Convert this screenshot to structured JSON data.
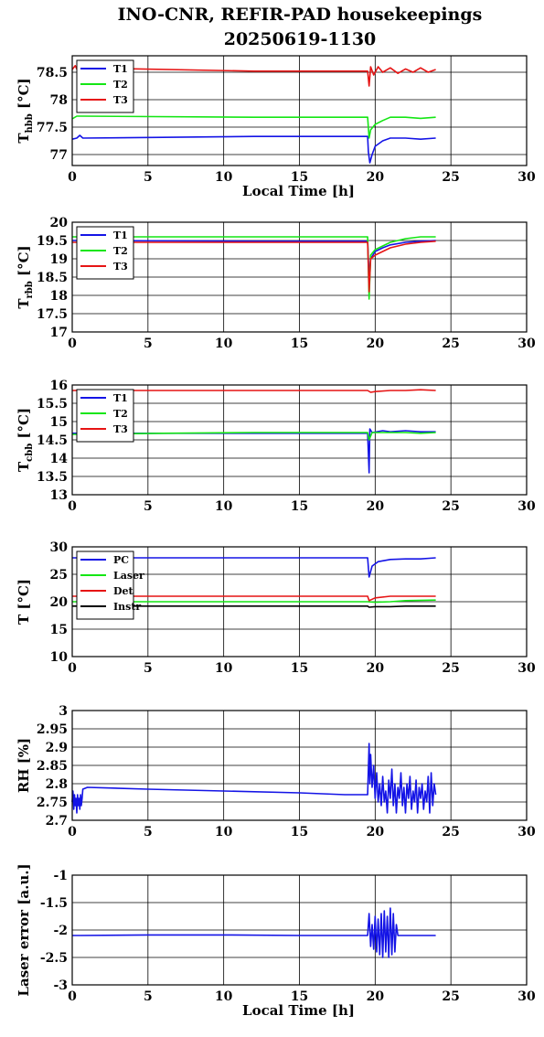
{
  "title_line1": "INO-CNR, REFIR-PAD housekeepings",
  "title_line2": "20250619-1130",
  "colors": {
    "blue": "#1414e6",
    "green": "#14e614",
    "red": "#e61414",
    "black": "#000000"
  },
  "chart_data": [
    {
      "type": "line",
      "ylabel_main": "T",
      "ylabel_sub": "hbb",
      "ylabel_unit": " [°C]",
      "xlabel": "Local Time [h]",
      "xlim": [
        0,
        30
      ],
      "xticks": [
        "0",
        "5",
        "10",
        "15",
        "20",
        "25",
        "30"
      ],
      "ylim": [
        76.8,
        78.8
      ],
      "yticks": [
        {
          "v": 77,
          "t": "77"
        },
        {
          "v": 77.5,
          "t": "77.5"
        },
        {
          "v": 78,
          "t": "78"
        },
        {
          "v": 78.5,
          "t": "78.5"
        }
      ],
      "grid": true,
      "legend": "top-left",
      "series": [
        {
          "name": "T1",
          "color": "blue",
          "x": [
            0,
            0.3,
            0.5,
            0.7,
            12,
            19.5,
            19.55,
            19.65,
            19.8,
            20,
            20.5,
            21,
            22,
            23,
            24
          ],
          "y": [
            77.28,
            77.3,
            77.35,
            77.3,
            77.33,
            77.33,
            77.05,
            76.85,
            77.0,
            77.15,
            77.25,
            77.3,
            77.3,
            77.28,
            77.3
          ]
        },
        {
          "name": "T2",
          "color": "green",
          "x": [
            0,
            0.3,
            0.5,
            12,
            19.5,
            19.6,
            19.7,
            20,
            20.5,
            21,
            22,
            23,
            24
          ],
          "y": [
            77.65,
            77.7,
            77.7,
            77.68,
            77.68,
            77.3,
            77.45,
            77.55,
            77.62,
            77.68,
            77.68,
            77.66,
            77.68
          ]
        },
        {
          "name": "T3",
          "color": "red",
          "x": [
            0,
            0.2,
            0.4,
            0.6,
            12,
            19.5,
            19.6,
            19.7,
            19.9,
            20.2,
            20.5,
            21,
            21.5,
            22,
            22.5,
            23,
            23.5,
            24
          ],
          "y": [
            78.55,
            78.62,
            78.5,
            78.58,
            78.52,
            78.52,
            78.25,
            78.6,
            78.45,
            78.6,
            78.5,
            78.58,
            78.48,
            78.56,
            78.5,
            78.58,
            78.5,
            78.55
          ]
        }
      ]
    },
    {
      "type": "line",
      "ylabel_main": "T",
      "ylabel_sub": "rbb",
      "ylabel_unit": " [°C]",
      "xlabel": "",
      "xlim": [
        0,
        30
      ],
      "xticks": [
        "0",
        "5",
        "10",
        "15",
        "20",
        "25",
        "30"
      ],
      "ylim": [
        17,
        20
      ],
      "yticks": [
        {
          "v": 17,
          "t": "17"
        },
        {
          "v": 17.5,
          "t": "17.5"
        },
        {
          "v": 18,
          "t": "18"
        },
        {
          "v": 18.5,
          "t": "18.5"
        },
        {
          "v": 19,
          "t": "19"
        },
        {
          "v": 19.5,
          "t": "19.5"
        },
        {
          "v": 20,
          "t": "20"
        }
      ],
      "grid": true,
      "legend": "top-left",
      "series": [
        {
          "name": "T1",
          "color": "blue",
          "x": [
            0,
            12,
            19.5,
            19.6,
            19.7,
            20,
            20.5,
            21,
            22,
            23,
            24
          ],
          "y": [
            19.5,
            19.48,
            19.48,
            18.5,
            19.0,
            19.2,
            19.3,
            19.38,
            19.45,
            19.48,
            19.5
          ]
        },
        {
          "name": "T2",
          "color": "green",
          "x": [
            0,
            12,
            19.5,
            19.6,
            19.7,
            20,
            20.5,
            21,
            22,
            23,
            24
          ],
          "y": [
            19.6,
            19.6,
            19.6,
            17.9,
            19.1,
            19.25,
            19.35,
            19.45,
            19.55,
            19.6,
            19.6
          ]
        },
        {
          "name": "T3",
          "color": "red",
          "x": [
            0,
            12,
            19.5,
            19.6,
            19.7,
            20,
            20.5,
            21,
            22,
            23,
            24
          ],
          "y": [
            19.45,
            19.45,
            19.45,
            18.1,
            19.0,
            19.1,
            19.2,
            19.3,
            19.4,
            19.45,
            19.48
          ]
        }
      ]
    },
    {
      "type": "line",
      "ylabel_main": "T",
      "ylabel_sub": "cbb",
      "ylabel_unit": " [°C]",
      "xlabel": "",
      "xlim": [
        0,
        30
      ],
      "xticks": [
        "0",
        "5",
        "10",
        "15",
        "20",
        "25",
        "30"
      ],
      "ylim": [
        13,
        16
      ],
      "yticks": [
        {
          "v": 13,
          "t": "13"
        },
        {
          "v": 13.5,
          "t": "13.5"
        },
        {
          "v": 14,
          "t": "14"
        },
        {
          "v": 14.5,
          "t": "14.5"
        },
        {
          "v": 15,
          "t": "15"
        },
        {
          "v": 15.5,
          "t": "15.5"
        },
        {
          "v": 16,
          "t": "16"
        }
      ],
      "grid": true,
      "legend": "top-left",
      "series": [
        {
          "name": "T1",
          "color": "blue",
          "x": [
            0,
            10,
            19.5,
            19.6,
            19.65,
            19.8,
            20.5,
            21,
            22,
            23,
            24
          ],
          "y": [
            14.68,
            14.68,
            14.68,
            13.6,
            14.8,
            14.7,
            14.75,
            14.72,
            14.75,
            14.72,
            14.72
          ]
        },
        {
          "name": "T2",
          "color": "green",
          "x": [
            0,
            6,
            12,
            19.5,
            19.6,
            19.8,
            21,
            22,
            23,
            24
          ],
          "y": [
            14.65,
            14.68,
            14.7,
            14.7,
            14.5,
            14.7,
            14.7,
            14.7,
            14.68,
            14.7
          ]
        },
        {
          "name": "T3",
          "color": "red",
          "x": [
            0,
            12,
            19.5,
            19.7,
            20,
            21,
            22,
            23,
            24
          ],
          "y": [
            15.85,
            15.85,
            15.85,
            15.8,
            15.82,
            15.85,
            15.85,
            15.87,
            15.85
          ]
        }
      ]
    },
    {
      "type": "line",
      "ylabel_main": "T [°C]",
      "ylabel_sub": "",
      "ylabel_unit": "",
      "xlabel": "",
      "xlim": [
        0,
        30
      ],
      "xticks": [
        "0",
        "5",
        "10",
        "15",
        "20",
        "25",
        "30"
      ],
      "ylim": [
        10,
        30
      ],
      "yticks": [
        {
          "v": 10,
          "t": "10"
        },
        {
          "v": 15,
          "t": "15"
        },
        {
          "v": 20,
          "t": "20"
        },
        {
          "v": 25,
          "t": "25"
        },
        {
          "v": 30,
          "t": "30"
        }
      ],
      "grid": true,
      "legend": "top-left",
      "series": [
        {
          "name": "PC",
          "color": "blue",
          "x": [
            0,
            12,
            19.5,
            19.6,
            19.8,
            20.2,
            21,
            22,
            23,
            24
          ],
          "y": [
            28,
            28,
            28,
            24.5,
            26.5,
            27.3,
            27.7,
            27.8,
            27.8,
            28
          ]
        },
        {
          "name": "Laser",
          "color": "green",
          "x": [
            0,
            12,
            19.5,
            20,
            21,
            22,
            24
          ],
          "y": [
            20,
            20,
            20,
            19.9,
            20,
            20.2,
            20.3
          ]
        },
        {
          "name": "Det",
          "color": "red",
          "x": [
            0,
            12,
            19.5,
            19.6,
            20,
            21,
            22,
            24
          ],
          "y": [
            21,
            21,
            21,
            20.2,
            20.7,
            21,
            21,
            21
          ]
        },
        {
          "name": "Instr",
          "color": "black",
          "x": [
            0,
            12,
            19.5,
            19.6,
            20,
            21,
            22,
            24
          ],
          "y": [
            19.2,
            19.2,
            19.2,
            19,
            19.1,
            19.1,
            19.2,
            19.2
          ]
        }
      ]
    },
    {
      "type": "line",
      "ylabel_main": "RH [%]",
      "ylabel_sub": "",
      "ylabel_unit": "",
      "xlabel": "",
      "xlim": [
        0,
        30
      ],
      "xticks": [
        "0",
        "5",
        "10",
        "15",
        "20",
        "25",
        "30"
      ],
      "ylim": [
        2.7,
        3
      ],
      "yticks": [
        {
          "v": 2.7,
          "t": "2.7"
        },
        {
          "v": 2.75,
          "t": "2.75"
        },
        {
          "v": 2.8,
          "t": "2.8"
        },
        {
          "v": 2.85,
          "t": "2.85"
        },
        {
          "v": 2.9,
          "t": "2.9"
        },
        {
          "v": 2.95,
          "t": "2.95"
        },
        {
          "v": 3,
          "t": "3"
        }
      ],
      "grid": true,
      "legend": "none",
      "series": [
        {
          "color": "blue",
          "x": [
            0,
            0.05,
            0.1,
            0.15,
            0.2,
            0.25,
            0.3,
            0.35,
            0.4,
            0.45,
            0.5,
            0.55,
            0.6,
            0.65,
            0.7,
            1,
            5,
            10,
            15,
            18,
            19.5,
            19.6,
            19.65,
            19.7,
            19.8,
            19.9,
            20,
            20.1,
            20.2,
            20.3,
            20.4,
            20.5,
            20.6,
            20.7,
            20.8,
            20.9,
            21,
            21.1,
            21.2,
            21.3,
            21.4,
            21.5,
            21.6,
            21.7,
            21.8,
            21.9,
            22,
            22.1,
            22.2,
            22.3,
            22.4,
            22.5,
            22.6,
            22.7,
            22.8,
            22.9,
            23,
            23.1,
            23.2,
            23.3,
            23.4,
            23.5,
            23.6,
            23.7,
            23.8,
            23.9,
            24
          ],
          "y": [
            2.75,
            2.78,
            2.73,
            2.77,
            2.74,
            2.76,
            2.72,
            2.77,
            2.74,
            2.76,
            2.73,
            2.77,
            2.74,
            2.76,
            2.785,
            2.79,
            2.785,
            2.78,
            2.775,
            2.77,
            2.77,
            2.91,
            2.8,
            2.88,
            2.79,
            2.85,
            2.76,
            2.83,
            2.75,
            2.8,
            2.74,
            2.82,
            2.75,
            2.78,
            2.72,
            2.81,
            2.76,
            2.84,
            2.74,
            2.8,
            2.72,
            2.79,
            2.76,
            2.83,
            2.74,
            2.79,
            2.72,
            2.8,
            2.76,
            2.82,
            2.73,
            2.78,
            2.75,
            2.81,
            2.72,
            2.79,
            2.76,
            2.8,
            2.73,
            2.78,
            2.75,
            2.82,
            2.72,
            2.83,
            2.74,
            2.8,
            2.77
          ]
        }
      ]
    },
    {
      "type": "line",
      "ylabel_main": "Laser error [a.u.]",
      "ylabel_sub": "",
      "ylabel_unit": "",
      "xlabel": "Local Time [h]",
      "xlim": [
        0,
        30
      ],
      "xticks": [
        "0",
        "5",
        "10",
        "15",
        "20",
        "25",
        "30"
      ],
      "ylim": [
        -3,
        -1
      ],
      "yticks": [
        {
          "v": -3,
          "t": "-3"
        },
        {
          "v": -2.5,
          "t": "-2.5"
        },
        {
          "v": -2,
          "t": "-2"
        },
        {
          "v": -1.5,
          "t": "-1.5"
        },
        {
          "v": -1,
          "t": "-1"
        }
      ],
      "grid": true,
      "legend": "none",
      "series": [
        {
          "color": "blue",
          "x": [
            0,
            0.5,
            5,
            10,
            15,
            19.5,
            19.6,
            19.7,
            19.8,
            19.9,
            20,
            20.1,
            20.2,
            20.3,
            20.4,
            20.5,
            20.6,
            20.7,
            20.8,
            20.9,
            21,
            21.1,
            21.2,
            21.3,
            21.4,
            21.5,
            22,
            23,
            24
          ],
          "y": [
            -2.1,
            -2.1,
            -2.09,
            -2.09,
            -2.1,
            -2.1,
            -1.7,
            -2.3,
            -1.9,
            -2.35,
            -1.75,
            -2.4,
            -1.8,
            -2.45,
            -1.7,
            -2.5,
            -1.65,
            -2.4,
            -1.75,
            -2.5,
            -1.6,
            -2.45,
            -1.7,
            -2.4,
            -1.9,
            -2.1,
            -2.1,
            -2.1,
            -2.1
          ]
        }
      ]
    }
  ]
}
